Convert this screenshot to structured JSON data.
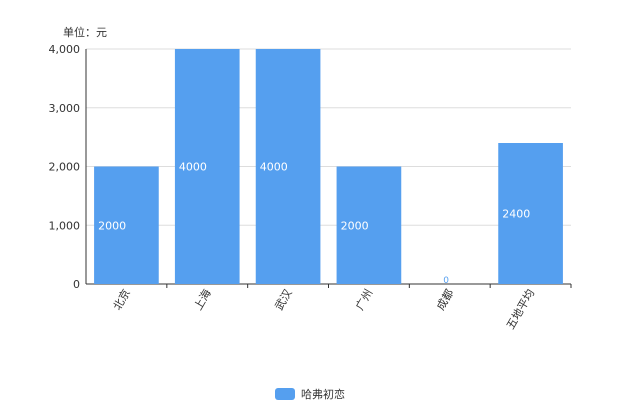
{
  "chart_data": {
    "type": "bar",
    "unit_label": "单位：元",
    "categories": [
      "北京",
      "上海",
      "武汉",
      "广州",
      "成都",
      "五地平均"
    ],
    "series": [
      {
        "name": "哈弗初恋",
        "values": [
          2000,
          4000,
          4000,
          2000,
          0,
          2400
        ],
        "data_labels": [
          "2000",
          "4000",
          "4000",
          "2000",
          "0",
          "2400"
        ]
      }
    ],
    "ylim": [
      0,
      4000
    ],
    "yticks": [
      0,
      1000,
      2000,
      3000,
      4000
    ],
    "ytick_labels": [
      "0",
      "1,000",
      "2,000",
      "3,000",
      "4,000"
    ],
    "grid": true,
    "legend_position": "bottom-center",
    "bar_color": "#559FEF",
    "label_color": "#ffffff",
    "zero_label_color": "#559FEF"
  }
}
